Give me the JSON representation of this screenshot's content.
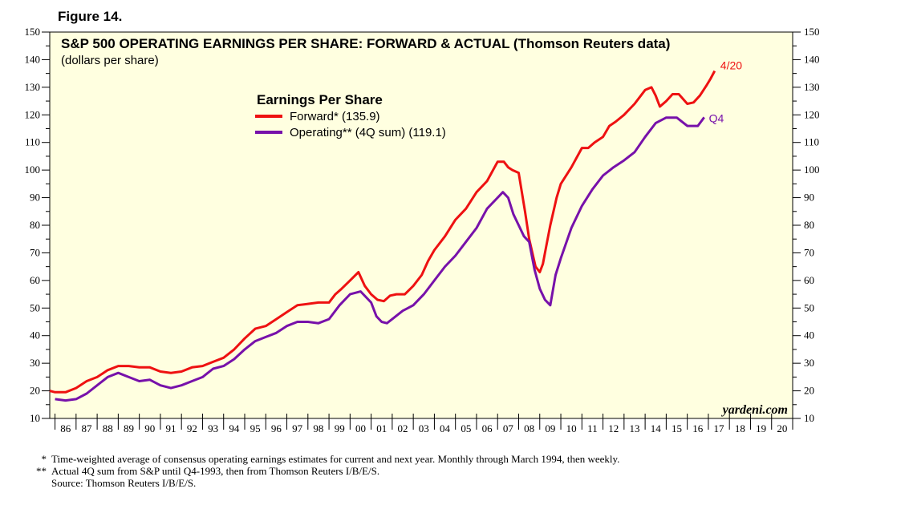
{
  "figure_label": "Figure 14.",
  "chart_data": {
    "type": "line",
    "title": "S&P 500 OPERATING EARNINGS PER SHARE: FORWARD & ACTUAL (Thomson Reuters data)",
    "subtitle": "(dollars per share)",
    "legend_title": "Earnings Per Share",
    "legend_position": "top-center",
    "ylim": [
      10,
      150
    ],
    "y_ticks": [
      10,
      20,
      30,
      40,
      50,
      60,
      70,
      80,
      90,
      100,
      110,
      120,
      130,
      140,
      150
    ],
    "y_scale": "linear",
    "xlim": [
      1985.75,
      2021
    ],
    "x_tick_labels": [
      "86",
      "87",
      "88",
      "89",
      "90",
      "91",
      "92",
      "93",
      "94",
      "95",
      "96",
      "97",
      "98",
      "99",
      "00",
      "01",
      "02",
      "03",
      "04",
      "05",
      "06",
      "07",
      "08",
      "09",
      "10",
      "11",
      "12",
      "13",
      "14",
      "15",
      "16",
      "17",
      "18",
      "19",
      "20"
    ],
    "grid": false,
    "background": "#ffffe0",
    "series": [
      {
        "name": "Forward* (135.9)",
        "color": "#ee1111",
        "end_label": "4/20",
        "x": [
          1985.75,
          1986.0,
          1986.5,
          1987.0,
          1987.5,
          1988.0,
          1988.5,
          1989.0,
          1989.5,
          1990.0,
          1990.5,
          1991.0,
          1991.5,
          1992.0,
          1992.5,
          1993.0,
          1993.5,
          1994.0,
          1994.5,
          1995.0,
          1995.5,
          1996.0,
          1996.5,
          1997.0,
          1997.5,
          1998.0,
          1998.5,
          1999.0,
          1999.3,
          1999.6,
          2000.0,
          2000.4,
          2000.7,
          2001.0,
          2001.3,
          2001.6,
          2001.9,
          2002.2,
          2002.6,
          2003.0,
          2003.4,
          2003.7,
          2004.0,
          2004.5,
          2005.0,
          2005.5,
          2006.0,
          2006.5,
          2007.0,
          2007.3,
          2007.5,
          2007.7,
          2008.0,
          2008.3,
          2008.5,
          2008.8,
          2009.0,
          2009.15,
          2009.3,
          2009.5,
          2009.8,
          2010.0,
          2010.5,
          2011.0,
          2011.3,
          2011.6,
          2012.0,
          2012.3,
          2012.6,
          2013.0,
          2013.5,
          2014.0,
          2014.3,
          2014.5,
          2014.7,
          2015.0,
          2015.3,
          2015.6,
          2016.0,
          2016.3,
          2016.6,
          2016.9,
          2017.1,
          2017.3
        ],
        "y": [
          20.0,
          19.5,
          19.5,
          21.0,
          23.5,
          25.0,
          27.5,
          29.0,
          29.0,
          28.5,
          28.5,
          27.0,
          26.5,
          27.0,
          28.5,
          29.0,
          30.5,
          32.0,
          35.0,
          39.0,
          42.5,
          43.5,
          46.0,
          48.5,
          51.0,
          51.5,
          52.0,
          52.0,
          55.0,
          57.0,
          60.0,
          63.0,
          58.0,
          55.0,
          53.0,
          52.5,
          54.5,
          55.0,
          55.0,
          58.0,
          62.0,
          67.0,
          71.0,
          76.0,
          82.0,
          86.0,
          92.0,
          96.0,
          103.0,
          103.0,
          101.0,
          100.0,
          99.0,
          85.0,
          75.0,
          65.0,
          63.0,
          66.0,
          72.0,
          80.0,
          90.0,
          95.0,
          101.0,
          108.0,
          108.0,
          110.0,
          112.0,
          116.0,
          117.5,
          120.0,
          124.0,
          129.0,
          130.0,
          127.0,
          123.0,
          125.0,
          127.5,
          127.5,
          124.0,
          124.5,
          127.0,
          130.5,
          133.0,
          135.9
        ]
      },
      {
        "name": "Operating** (4Q sum) (119.1)",
        "color": "#7711aa",
        "end_label": "Q4",
        "x": [
          1986.0,
          1986.5,
          1987.0,
          1987.5,
          1988.0,
          1988.5,
          1989.0,
          1989.5,
          1990.0,
          1990.5,
          1991.0,
          1991.5,
          1992.0,
          1992.5,
          1993.0,
          1993.5,
          1994.0,
          1994.5,
          1995.0,
          1995.5,
          1996.0,
          1996.5,
          1997.0,
          1997.5,
          1998.0,
          1998.5,
          1999.0,
          1999.5,
          2000.0,
          2000.5,
          2001.0,
          2001.25,
          2001.5,
          2001.75,
          2002.0,
          2002.5,
          2003.0,
          2003.5,
          2004.0,
          2004.5,
          2005.0,
          2005.5,
          2006.0,
          2006.5,
          2007.0,
          2007.25,
          2007.5,
          2007.75,
          2008.0,
          2008.25,
          2008.5,
          2008.75,
          2009.0,
          2009.25,
          2009.5,
          2009.75,
          2010.0,
          2010.5,
          2011.0,
          2011.5,
          2012.0,
          2012.5,
          2013.0,
          2013.5,
          2014.0,
          2014.5,
          2015.0,
          2015.5,
          2016.0,
          2016.5,
          2016.8
        ],
        "y": [
          17.0,
          16.5,
          17.0,
          19.0,
          22.0,
          25.0,
          26.5,
          25.0,
          23.5,
          24.0,
          22.0,
          21.0,
          22.0,
          23.5,
          25.0,
          28.0,
          29.0,
          31.5,
          35.0,
          38.0,
          39.5,
          41.0,
          43.5,
          45.0,
          45.0,
          44.5,
          46.0,
          51.0,
          55.0,
          56.0,
          52.0,
          47.0,
          45.0,
          44.5,
          46.0,
          49.0,
          51.0,
          55.0,
          60.0,
          65.0,
          69.0,
          74.0,
          79.0,
          86.0,
          90.0,
          92.0,
          90.0,
          84.0,
          80.0,
          76.0,
          74.0,
          64.0,
          57.0,
          53.0,
          51.0,
          62.0,
          68.0,
          79.0,
          87.0,
          93.0,
          98.0,
          101.0,
          103.5,
          106.5,
          112.0,
          117.0,
          119.0,
          119.0,
          116.0,
          116.0,
          119.1
        ]
      }
    ],
    "annotations": [
      "yardeni.com"
    ]
  },
  "footnotes": [
    {
      "mark": "*",
      "text": "Time-weighted average of consensus operating earnings estimates for current and next year. Monthly through March 1994, then weekly."
    },
    {
      "mark": "**",
      "text": "Actual 4Q sum from S&P until Q4-1993, then from Thomson Reuters I/B/E/S."
    },
    {
      "mark": "",
      "text": "Source: Thomson Reuters I/B/E/S."
    }
  ]
}
